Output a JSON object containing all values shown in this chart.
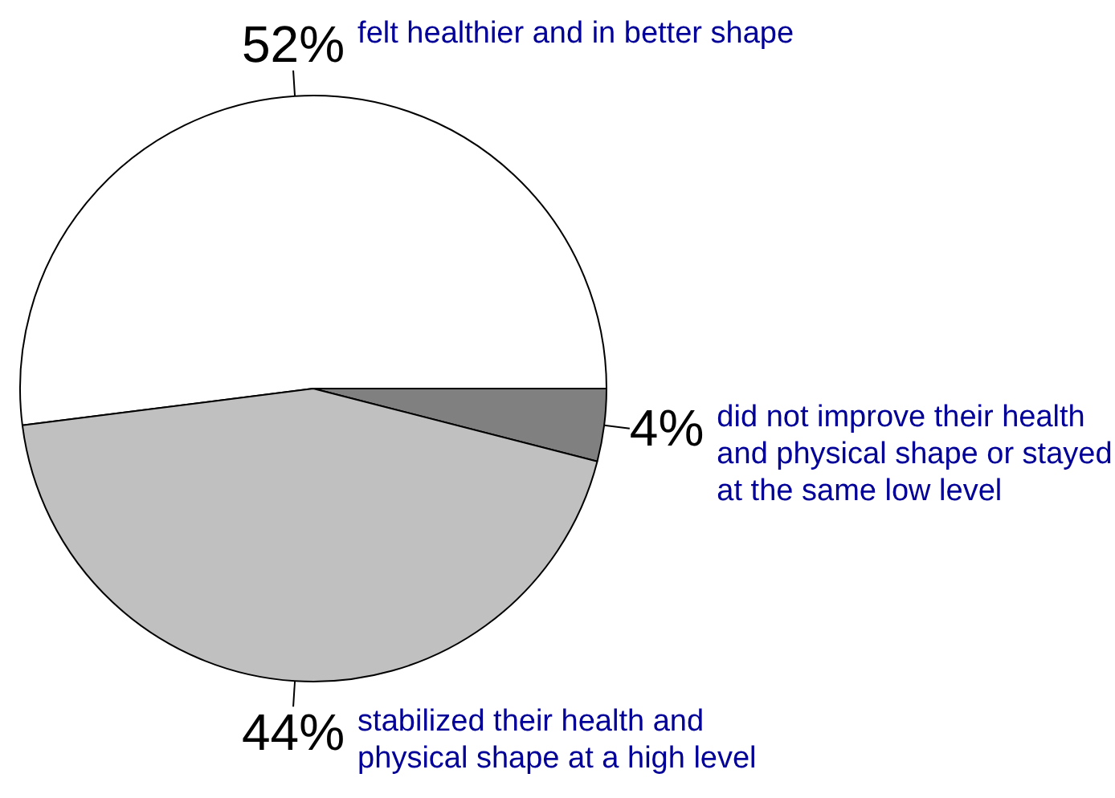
{
  "chart_data": {
    "type": "pie",
    "categories": [
      "felt healthier and in better shape",
      "did not improve their health and physical shape or stayed at the same low level",
      "stabilized their health and physical shape at a high level"
    ],
    "values": [
      52,
      4,
      44
    ],
    "colors": [
      "#ffffff",
      "#808080",
      "#c0c0c0"
    ],
    "value_labels": [
      "52%",
      "4%",
      "44%"
    ],
    "legend": false
  }
}
